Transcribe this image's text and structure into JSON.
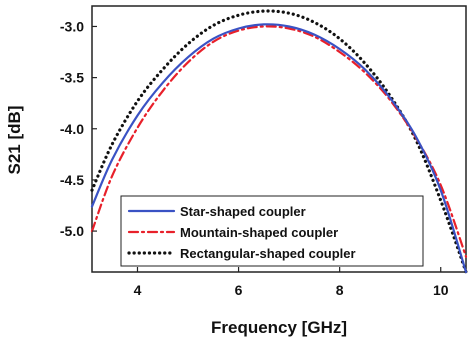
{
  "chart_data": {
    "type": "line",
    "xlabel": "Frequency [GHz]",
    "ylabel": "S21 [dB]",
    "xlim": [
      3.1,
      10.5
    ],
    "ylim": [
      -5.4,
      -2.8
    ],
    "x_ticks": [
      4,
      6,
      8,
      10
    ],
    "x_tick_labels": [
      "4",
      "6",
      "8",
      "10"
    ],
    "y_ticks": [
      -3.0,
      -3.5,
      -4.0,
      -4.5,
      -5.0
    ],
    "y_tick_labels": [
      "-3.0",
      "-3.5",
      "-4.0",
      "-4.5",
      "-5.0"
    ],
    "grid": false,
    "legend_position": "bottom-right",
    "series": [
      {
        "name": "Star-shaped coupler",
        "color": "#3a52c4",
        "style": "solid",
        "x": [
          3.1,
          3.5,
          4.0,
          4.5,
          5.0,
          5.5,
          6.0,
          6.5,
          7.0,
          7.5,
          8.0,
          8.5,
          9.0,
          9.5,
          10.0,
          10.5
        ],
        "y": [
          -4.76,
          -4.3,
          -3.87,
          -3.55,
          -3.3,
          -3.12,
          -3.02,
          -2.98,
          -3.0,
          -3.08,
          -3.22,
          -3.42,
          -3.7,
          -4.07,
          -4.6,
          -5.4
        ]
      },
      {
        "name": "Mountain-shaped coupler",
        "color": "#e8202a",
        "style": "dashdot",
        "x": [
          3.1,
          3.5,
          4.0,
          4.5,
          5.0,
          5.5,
          6.0,
          6.5,
          7.0,
          7.5,
          8.0,
          8.5,
          9.0,
          9.5,
          10.0,
          10.5
        ],
        "y": [
          -5.0,
          -4.46,
          -3.99,
          -3.63,
          -3.35,
          -3.15,
          -3.04,
          -3.0,
          -3.02,
          -3.1,
          -3.25,
          -3.45,
          -3.72,
          -4.08,
          -4.55,
          -5.25
        ]
      },
      {
        "name": "Rectangular-shaped coupler",
        "color": "#111111",
        "style": "dotted",
        "x": [
          3.1,
          3.5,
          4.0,
          4.5,
          5.0,
          5.5,
          6.0,
          6.5,
          7.0,
          7.5,
          8.0,
          8.5,
          9.0,
          9.5,
          10.0,
          10.5
        ],
        "y": [
          -4.6,
          -4.15,
          -3.73,
          -3.42,
          -3.17,
          -2.99,
          -2.89,
          -2.85,
          -2.87,
          -2.96,
          -3.12,
          -3.36,
          -3.68,
          -4.1,
          -4.7,
          -5.5
        ]
      }
    ]
  }
}
